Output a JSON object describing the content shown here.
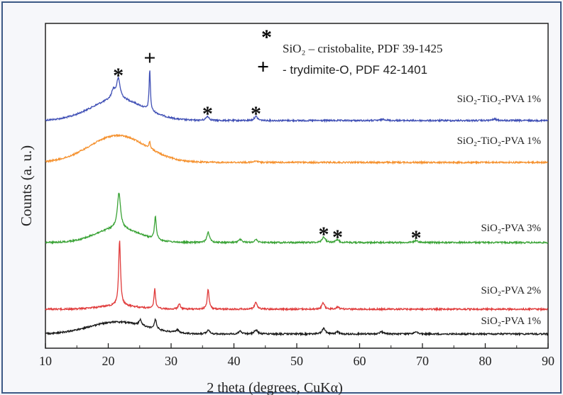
{
  "chart_data": {
    "type": "line",
    "xlabel": "2 theta (degrees, CuKα)",
    "ylabel": "Counts (a. u.)",
    "xlim": [
      10,
      90
    ],
    "x_ticks": [
      10,
      20,
      30,
      40,
      50,
      60,
      70,
      80,
      90
    ],
    "grid": false,
    "legend_position": "top-right",
    "legend": {
      "star_text": "SiO₂ – cristobalite, PDF 39-1425",
      "plus_text": "- trydimite-O, PDF 42-1401"
    },
    "series": [
      {
        "name": "SiO₂-TiO₂-PVA 1%",
        "color": "#3f4fb5",
        "baseline": 170,
        "broad_peaks": [
          {
            "center": 21.5,
            "height": 30,
            "width": 4.2
          }
        ],
        "peaks": [
          {
            "x": 20.8,
            "h": 12,
            "w": 0.35
          },
          {
            "x": 21.6,
            "h": 28,
            "w": 0.35
          },
          {
            "x": 26.6,
            "h": 58,
            "w": 0.12
          },
          {
            "x": 35.8,
            "h": 6,
            "w": 0.3
          },
          {
            "x": 43.5,
            "h": 6,
            "w": 0.3
          },
          {
            "x": 63.8,
            "h": 2,
            "w": 0.4
          },
          {
            "x": 81.5,
            "h": 2,
            "w": 0.4
          }
        ]
      },
      {
        "name": "SiO₂-TiO₂-PVA 1%",
        "color": "#f5912e",
        "baseline": 229,
        "broad_peaks": [
          {
            "center": 21.5,
            "height": 38,
            "width": 4.5
          }
        ],
        "peaks": [
          {
            "x": 26.6,
            "h": 9,
            "w": 0.15
          },
          {
            "x": 43.5,
            "h": 2,
            "w": 0.3
          }
        ]
      },
      {
        "name": "SiO₂-PVA 3%",
        "color": "#3aa336",
        "baseline": 342,
        "broad_peaks": [
          {
            "center": 21.5,
            "height": 20,
            "width": 3.5
          }
        ],
        "peaks": [
          {
            "x": 21.7,
            "h": 50,
            "w": 0.3
          },
          {
            "x": 27.5,
            "h": 32,
            "w": 0.18
          },
          {
            "x": 35.9,
            "h": 15,
            "w": 0.25
          },
          {
            "x": 41.0,
            "h": 4,
            "w": 0.3
          },
          {
            "x": 43.5,
            "h": 4,
            "w": 0.3
          },
          {
            "x": 54.3,
            "h": 8,
            "w": 0.3
          },
          {
            "x": 56.5,
            "h": 4,
            "w": 0.3
          },
          {
            "x": 69.0,
            "h": 3,
            "w": 0.35
          }
        ]
      },
      {
        "name": "SiO₂-PVA 2%",
        "color": "#e03a3a",
        "baseline": 436,
        "broad_peaks": [
          {
            "center": 21.5,
            "height": 5,
            "width": 3.0
          }
        ],
        "peaks": [
          {
            "x": 21.8,
            "h": 92,
            "w": 0.18
          },
          {
            "x": 27.4,
            "h": 28,
            "w": 0.15
          },
          {
            "x": 31.3,
            "h": 8,
            "w": 0.2
          },
          {
            "x": 35.9,
            "h": 28,
            "w": 0.18
          },
          {
            "x": 43.5,
            "h": 10,
            "w": 0.25
          },
          {
            "x": 54.2,
            "h": 9,
            "w": 0.25
          },
          {
            "x": 56.5,
            "h": 3,
            "w": 0.3
          }
        ]
      },
      {
        "name": "SiO₂-PVA 1%",
        "color": "#1a1a1a",
        "baseline": 471,
        "broad_peaks": [
          {
            "center": 21.5,
            "height": 17,
            "width": 4.5
          }
        ],
        "peaks": [
          {
            "x": 25.1,
            "h": 8,
            "w": 0.25
          },
          {
            "x": 27.5,
            "h": 14,
            "w": 0.2
          },
          {
            "x": 31.0,
            "h": 4,
            "w": 0.3
          },
          {
            "x": 35.9,
            "h": 6,
            "w": 0.25
          },
          {
            "x": 41.0,
            "h": 4,
            "w": 0.3
          },
          {
            "x": 43.5,
            "h": 6,
            "w": 0.3
          },
          {
            "x": 54.3,
            "h": 8,
            "w": 0.3
          },
          {
            "x": 56.5,
            "h": 3,
            "w": 0.3
          },
          {
            "x": 63.5,
            "h": 3,
            "w": 0.4
          },
          {
            "x": 69.0,
            "h": 3,
            "w": 0.4
          }
        ]
      }
    ],
    "annotations": [
      {
        "symbol": "*",
        "x": 21.6,
        "series": 0
      },
      {
        "symbol": "+",
        "x": 26.6,
        "series": 0
      },
      {
        "symbol": "*",
        "x": 35.8,
        "series": 0
      },
      {
        "symbol": "*",
        "x": 43.5,
        "series": 0
      },
      {
        "symbol": "*",
        "x": 54.3,
        "series": 2
      },
      {
        "symbol": "*",
        "x": 56.5,
        "series": 2
      },
      {
        "symbol": "*",
        "x": 69.0,
        "series": 2
      }
    ]
  }
}
